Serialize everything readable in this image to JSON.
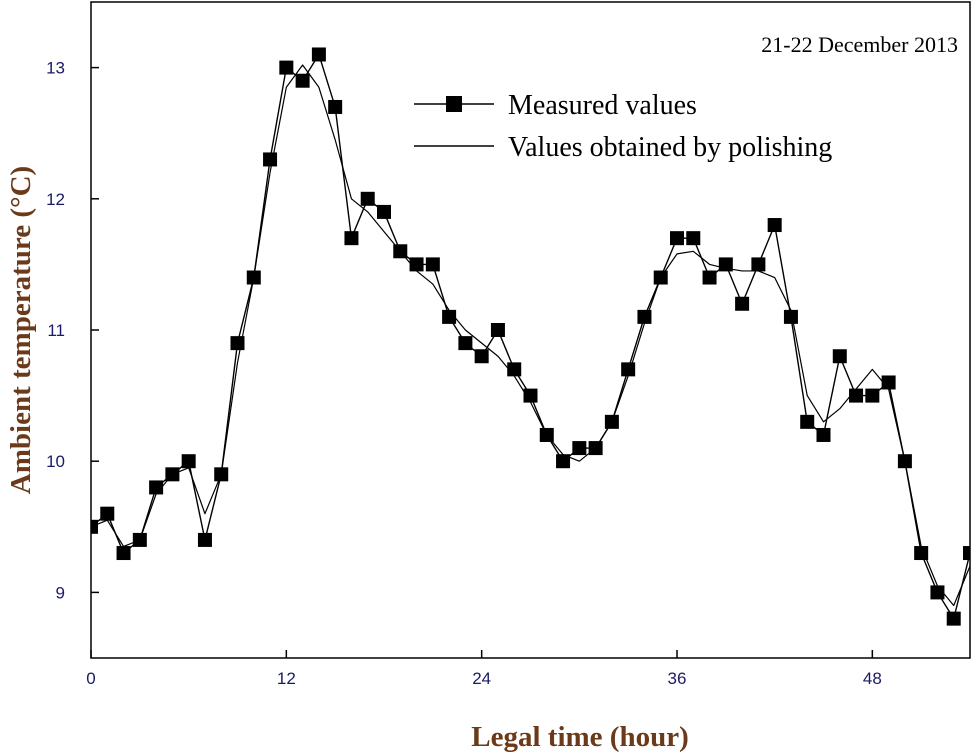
{
  "chart_data": {
    "type": "line",
    "title": "",
    "annotation": "21-22 December 2013",
    "xlabel": "Legal time (hour)",
    "ylabel": "Ambient temperature (°C)",
    "xlim": [
      0,
      54
    ],
    "ylim": [
      8.5,
      13.5
    ],
    "xticks": [
      0,
      12,
      24,
      36,
      48
    ],
    "yticks": [
      9,
      10,
      11,
      12,
      13
    ],
    "legend_position": "top-right",
    "series": [
      {
        "name": "Measured values",
        "style": "line-with-square-markers",
        "x": [
          0,
          1,
          2,
          3,
          4,
          5,
          6,
          7,
          8,
          9,
          10,
          11,
          12,
          13,
          14,
          15,
          16,
          17,
          18,
          19,
          20,
          21,
          22,
          23,
          24,
          25,
          26,
          27,
          28,
          29,
          30,
          31,
          32,
          33,
          34,
          35,
          36,
          37,
          38,
          39,
          40,
          41,
          42,
          43,
          44,
          45,
          46,
          47,
          48,
          49,
          50,
          51,
          52,
          53,
          54
        ],
        "values": [
          9.5,
          9.6,
          9.3,
          9.4,
          9.8,
          9.9,
          10.0,
          9.4,
          9.9,
          10.9,
          11.4,
          12.3,
          13.0,
          12.9,
          13.1,
          12.7,
          11.7,
          12.0,
          11.9,
          11.6,
          11.5,
          11.5,
          11.1,
          10.9,
          10.8,
          11.0,
          10.7,
          10.5,
          10.2,
          10.0,
          10.1,
          10.1,
          10.3,
          10.7,
          11.1,
          11.4,
          11.7,
          11.7,
          11.4,
          11.5,
          11.2,
          11.5,
          11.8,
          11.1,
          10.3,
          10.2,
          10.8,
          10.5,
          10.5,
          10.6,
          10.0,
          9.3,
          9.0,
          8.8,
          9.3
        ]
      },
      {
        "name": "Values obtained by polishing",
        "style": "line",
        "x": [
          0,
          1,
          2,
          3,
          4,
          5,
          6,
          7,
          8,
          9,
          10,
          11,
          12,
          13,
          14,
          15,
          16,
          17,
          18,
          19,
          20,
          21,
          22,
          23,
          24,
          25,
          26,
          27,
          28,
          29,
          30,
          31,
          32,
          33,
          34,
          35,
          36,
          37,
          38,
          39,
          40,
          41,
          42,
          43,
          44,
          45,
          46,
          47,
          48,
          49,
          50,
          51,
          52,
          53,
          54
        ],
        "values": [
          9.5,
          9.55,
          9.35,
          9.4,
          9.75,
          9.9,
          9.95,
          9.6,
          9.9,
          10.75,
          11.4,
          12.2,
          12.85,
          13.02,
          12.85,
          12.45,
          12.0,
          11.9,
          11.75,
          11.6,
          11.45,
          11.35,
          11.15,
          11.0,
          10.9,
          10.8,
          10.65,
          10.45,
          10.2,
          10.05,
          10.0,
          10.1,
          10.3,
          10.65,
          11.05,
          11.4,
          11.58,
          11.6,
          11.5,
          11.47,
          11.45,
          11.45,
          11.4,
          11.15,
          10.5,
          10.3,
          10.4,
          10.55,
          10.7,
          10.55,
          10.0,
          9.35,
          9.05,
          8.9,
          9.2
        ]
      }
    ]
  }
}
